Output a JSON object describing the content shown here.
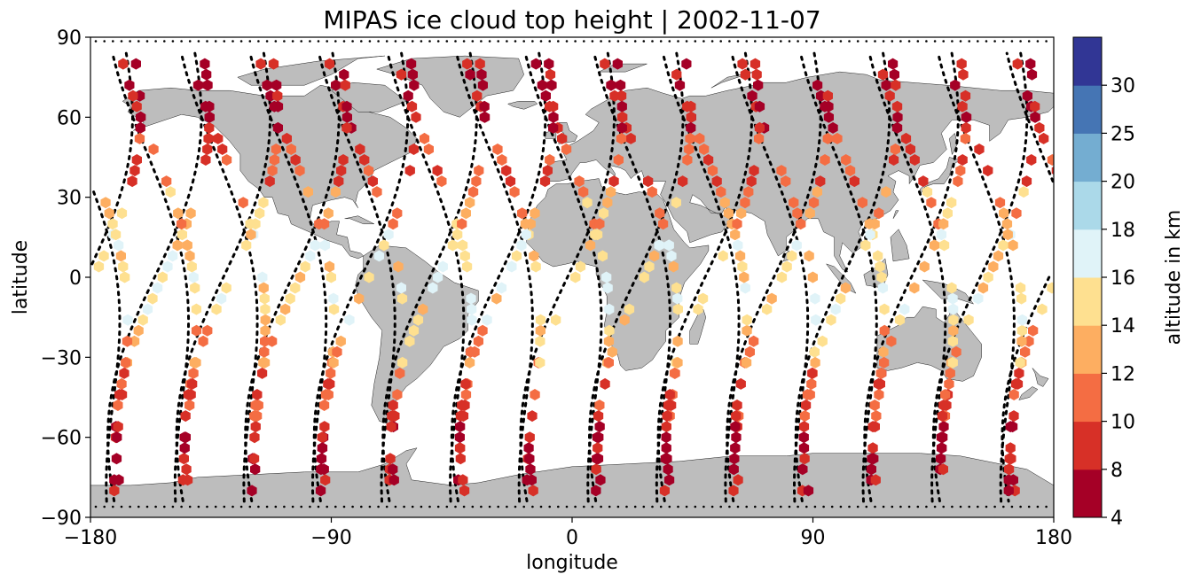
{
  "chart_data": {
    "type": "scatter",
    "title": "MIPAS ice cloud top height | 2002-11-07",
    "xlabel": "longitude",
    "ylabel": "latitude",
    "xlim": [
      -180,
      180
    ],
    "ylim": [
      -90,
      90
    ],
    "xticks": [
      -180,
      -90,
      0,
      90,
      180
    ],
    "yticks": [
      -90,
      -60,
      -30,
      0,
      30,
      60,
      90
    ],
    "xtick_labels": [
      "−180",
      "−90",
      "0",
      "90",
      "180"
    ],
    "ytick_labels": [
      "−90",
      "−60",
      "−30",
      "0",
      "30",
      "60",
      "90"
    ],
    "grid": false,
    "colorbar": {
      "label": "altitude in km",
      "boundaries": [
        4,
        8,
        10,
        12,
        14,
        16,
        18,
        20,
        25,
        30
      ],
      "tick_labels": [
        "4",
        "8",
        "10",
        "12",
        "14",
        "16",
        "18",
        "20",
        "25",
        "30"
      ],
      "colors": [
        "#a50026",
        "#d73027",
        "#f46d43",
        "#fdae61",
        "#fee090",
        "#e0f3f8",
        "#abd9e9",
        "#74add1",
        "#4575b4",
        "#313695"
      ]
    },
    "land_color": "#bdbdbd",
    "track_color": "#000000",
    "tracks_note": "descending/ascending orbit tracks drawn as dotted black lines"
  }
}
